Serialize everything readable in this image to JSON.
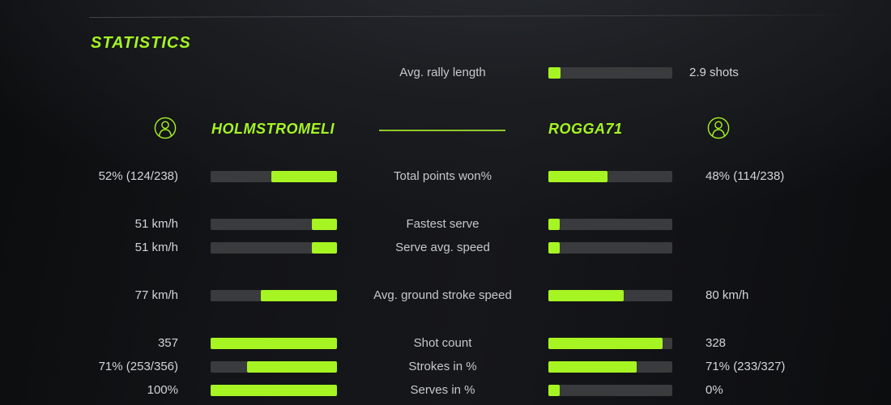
{
  "colors": {
    "accent": "#a6f422",
    "bar_track": "#3a3b3d",
    "divider": "#8fc92a",
    "label_text": "#c6c9cc",
    "value_text": "#d2d5d8"
  },
  "title": "STATISTICS",
  "rally": {
    "label": "Avg. rally length",
    "value": "2.9 shots",
    "fill_pct": 10
  },
  "players": {
    "left": {
      "name": "HOLMSTROMELI",
      "icon": "user-icon"
    },
    "right": {
      "name": "ROGGA71",
      "icon": "user-icon"
    }
  },
  "stats": {
    "rows": [
      {
        "label": "Total points won%",
        "left": {
          "value": "52% (124/238)",
          "fill_pct": 52
        },
        "right": {
          "value": "48% (114/238)",
          "fill_pct": 48
        }
      },
      {
        "label": "Fastest serve",
        "left": {
          "value": "51 km/h",
          "fill_pct": 20
        },
        "right": {
          "value": "",
          "fill_pct": 9
        }
      },
      {
        "label": "Serve avg. speed",
        "left": {
          "value": "51 km/h",
          "fill_pct": 20
        },
        "right": {
          "value": "",
          "fill_pct": 9
        }
      },
      {
        "label": "Avg. ground stroke speed",
        "left": {
          "value": "77 km/h",
          "fill_pct": 60
        },
        "right": {
          "value": "80 km/h",
          "fill_pct": 61
        }
      },
      {
        "label": "Shot count",
        "left": {
          "value": "357",
          "fill_pct": 100
        },
        "right": {
          "value": "328",
          "fill_pct": 92
        }
      },
      {
        "label": "Strokes in %",
        "left": {
          "value": "71% (253/356)",
          "fill_pct": 71
        },
        "right": {
          "value": "71% (233/327)",
          "fill_pct": 71
        }
      },
      {
        "label": "Serves in %",
        "left": {
          "value": "100%",
          "fill_pct": 100
        },
        "right": {
          "value": "0%",
          "fill_pct": 9
        }
      }
    ]
  }
}
